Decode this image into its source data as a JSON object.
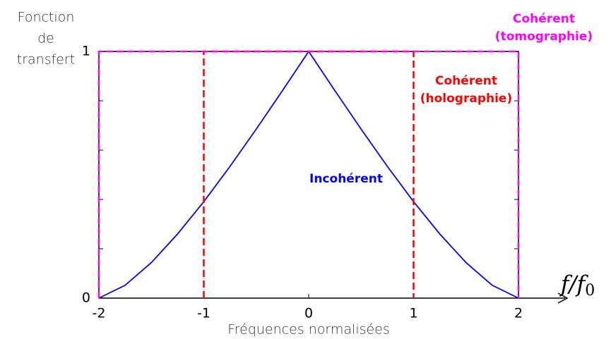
{
  "chart_data": {
    "type": "line",
    "ylabel": [
      "Fonction",
      "de",
      "transfert"
    ],
    "xlabel": "Fréquences normalisées",
    "x_symbol": {
      "base": "f/f",
      "sub": "0"
    },
    "xlim": [
      -2,
      2
    ],
    "xticks": [
      -2,
      -1,
      0,
      1,
      2
    ],
    "ylim": [
      0,
      1
    ],
    "yticks": [
      0,
      1
    ],
    "yminor": [
      0.2,
      0.4,
      0.6,
      0.8
    ],
    "series": [
      {
        "label": [
          "Incohérent"
        ],
        "color": "#0000ff",
        "dashed": false,
        "x": [
          -2,
          -1.75,
          -1.5,
          -1.25,
          -1,
          -0.75,
          -0.5,
          -0.25,
          0,
          0.25,
          0.5,
          0.75,
          1,
          1.25,
          1.5,
          1.75,
          2
        ],
        "values": [
          0,
          0.052,
          0.144,
          0.26,
          0.391,
          0.534,
          0.685,
          0.841,
          1,
          0.841,
          0.685,
          0.534,
          0.391,
          0.26,
          0.144,
          0.052,
          0
        ]
      },
      {
        "label": [
          "Cohérent",
          "(holographie)"
        ],
        "color": "#ff0000",
        "dashed": true,
        "x": [
          -1,
          -1,
          1,
          1
        ],
        "values": [
          0,
          1,
          1,
          0
        ]
      },
      {
        "label": [
          "Cohérent",
          "(tomographie)"
        ],
        "color": "#ff00ff",
        "dashed": true,
        "x": [
          -2,
          -2,
          2,
          2
        ],
        "values": [
          0,
          1,
          1,
          0
        ]
      }
    ]
  }
}
